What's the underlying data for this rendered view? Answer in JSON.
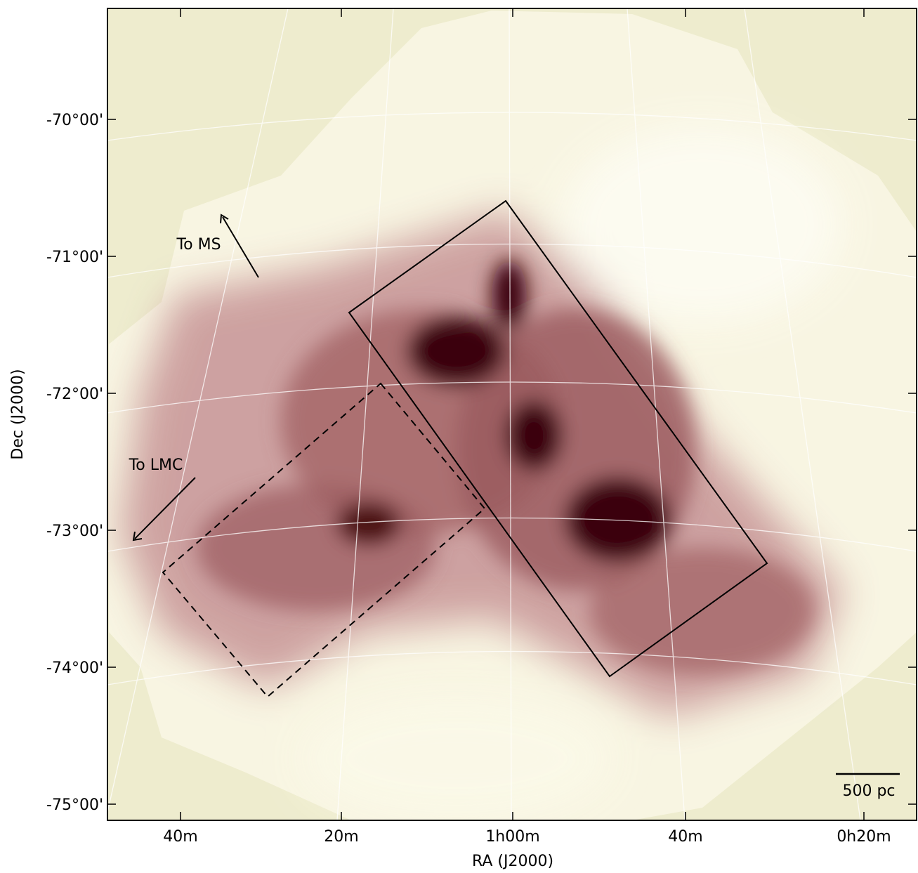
{
  "map": {
    "x_axis": {
      "label": "RA (J2000)",
      "ticks": [
        "40m",
        "20m",
        "1h00m",
        "40m",
        "0h20m"
      ]
    },
    "y_axis": {
      "label": "Dec (J2000)",
      "ticks": [
        "-70°00'",
        "-71°00'",
        "-72°00'",
        "-73°00'",
        "-74°00'",
        "-75°00'"
      ]
    },
    "annotations": [
      "To MS",
      "To LMC"
    ],
    "scale_bar": "500 pc"
  }
}
